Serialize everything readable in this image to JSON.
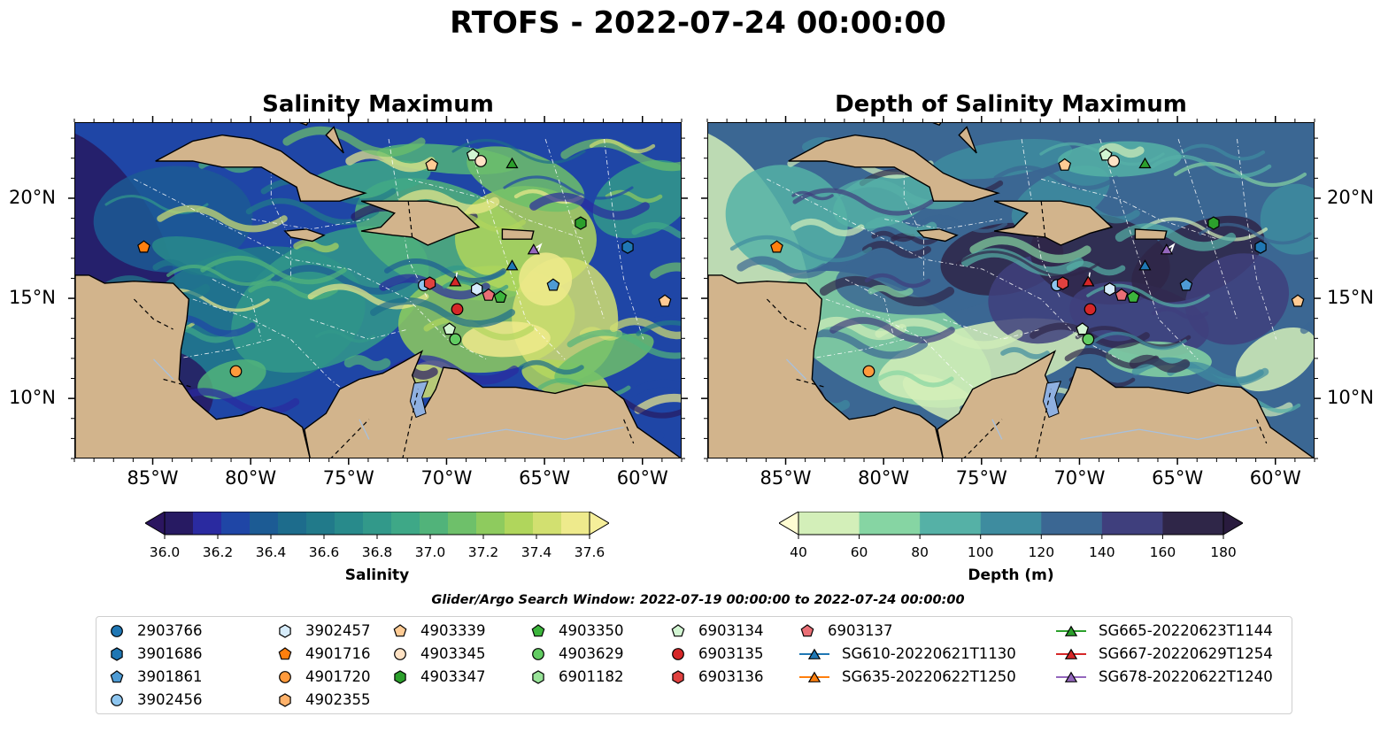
{
  "title": "RTOFS - 2022-07-24 00:00:00",
  "panels": [
    {
      "title": "Salinity Maximum"
    },
    {
      "title": "Depth of Salinity Maximum"
    }
  ],
  "axes": {
    "lon_labels": [
      "85°W",
      "80°W",
      "75°W",
      "70°W",
      "65°W",
      "60°W"
    ],
    "lat_labels": [
      "20°N",
      "15°N",
      "10°N"
    ]
  },
  "colorbars": [
    {
      "label": "Salinity",
      "ticks": [
        "36.0",
        "36.2",
        "36.4",
        "36.6",
        "36.8",
        "37.0",
        "37.2",
        "37.4",
        "37.6"
      ],
      "colors": [
        "#271a62",
        "#2a2aa0",
        "#1f46a6",
        "#1c5b94",
        "#1d6c8c",
        "#217a8a",
        "#288a8b",
        "#32998a",
        "#3ea887",
        "#51b37a",
        "#6ec06a",
        "#8ecb5e",
        "#b0d65c",
        "#d2e070",
        "#eeea8c"
      ],
      "extend_low": "#2b1560",
      "extend_high": "#f6ef9a"
    },
    {
      "label": "Depth (m)",
      "ticks": [
        "40",
        "60",
        "80",
        "100",
        "120",
        "140",
        "160",
        "180"
      ],
      "colors": [
        "#d3efb9",
        "#86d5a3",
        "#55b1a6",
        "#3e8c9f",
        "#3b6793",
        "#3f3f7d",
        "#2f2648"
      ],
      "extend_low": "#fefcd2",
      "extend_high": "#291b3e"
    }
  ],
  "search_window": "Glider/Argo Search Window: 2022-07-19 00:00:00 to 2022-07-24 00:00:00",
  "legend": [
    {
      "label": "2903766",
      "marker": "circle",
      "color": "#1f77b4"
    },
    {
      "label": "3901686",
      "marker": "hexagon",
      "color": "#1f77b4"
    },
    {
      "label": "3901861",
      "marker": "pentagon",
      "color": "#4e9bd4"
    },
    {
      "label": "3902456",
      "marker": "circle",
      "color": "#8ec6f0"
    },
    {
      "label": "3902457",
      "marker": "hexagon",
      "color": "#d6ecfb"
    },
    {
      "label": "4901716",
      "marker": "pentagon",
      "color": "#ff7f0e"
    },
    {
      "label": "4901720",
      "marker": "circle",
      "color": "#ff9a3c"
    },
    {
      "label": "4902355",
      "marker": "hexagon",
      "color": "#ffb26b"
    },
    {
      "label": "4903339",
      "marker": "pentagon",
      "color": "#ffcb94"
    },
    {
      "label": "4903345",
      "marker": "circle",
      "color": "#ffe2c4"
    },
    {
      "label": "4903347",
      "marker": "hexagon",
      "color": "#2ca02c"
    },
    {
      "label": "4903350",
      "marker": "pentagon",
      "color": "#3cb53c"
    },
    {
      "label": "4903629",
      "marker": "circle",
      "color": "#62cc62"
    },
    {
      "label": "6901182",
      "marker": "hexagon",
      "color": "#98e398"
    },
    {
      "label": "6903134",
      "marker": "pentagon",
      "color": "#d2f5d2"
    },
    {
      "label": "6903135",
      "marker": "circle",
      "color": "#d62728"
    },
    {
      "label": "6903136",
      "marker": "hexagon",
      "color": "#e0413f"
    },
    {
      "label": "6903137",
      "marker": "pentagon",
      "color": "#ea6f76"
    },
    {
      "label": "SG610-20220621T1130",
      "marker": "triangle-line",
      "color": "#1f77b4"
    },
    {
      "label": "SG635-20220622T1250",
      "marker": "triangle-line",
      "color": "#ff7f0e"
    },
    {
      "label": "SG665-20220623T1144",
      "marker": "triangle-line",
      "color": "#2ca02c"
    },
    {
      "label": "SG667-20220629T1254",
      "marker": "triangle-line",
      "color": "#d62728"
    },
    {
      "label": "SG678-20220622T1240",
      "marker": "triangle-line",
      "color": "#9467bd"
    }
  ],
  "map_markers": [
    {
      "lon": -85.5,
      "lat": 17.6,
      "marker": "pentagon",
      "color": "#ff7f0e"
    },
    {
      "lon": -80.8,
      "lat": 11.4,
      "marker": "circle",
      "color": "#ff9a3c"
    },
    {
      "lon": -70.8,
      "lat": 21.7,
      "marker": "pentagon",
      "color": "#ffcb94"
    },
    {
      "lon": -68.7,
      "lat": 22.2,
      "marker": "pentagon",
      "color": "#d2f5d2"
    },
    {
      "lon": -68.3,
      "lat": 21.9,
      "marker": "circle",
      "color": "#ffe2c4"
    },
    {
      "lon": -66.7,
      "lat": 21.8,
      "marker": "triangle",
      "color": "#2ca02c"
    },
    {
      "lon": -63.2,
      "lat": 18.8,
      "marker": "hexagon",
      "color": "#2ca02c"
    },
    {
      "lon": -60.8,
      "lat": 17.6,
      "marker": "hexagon",
      "color": "#1f77b4"
    },
    {
      "lon": -66.7,
      "lat": 16.7,
      "marker": "triangle",
      "color": "#1f77b4"
    },
    {
      "lon": -65.6,
      "lat": 17.5,
      "marker": "triangle",
      "color": "#9467bd"
    },
    {
      "lon": -64.6,
      "lat": 15.7,
      "marker": "pentagon",
      "color": "#4e9bd4"
    },
    {
      "lon": -58.9,
      "lat": 14.9,
      "marker": "pentagon",
      "color": "#ffcb94"
    },
    {
      "lon": -71.2,
      "lat": 15.7,
      "marker": "circle",
      "color": "#8ec6f0"
    },
    {
      "lon": -70.9,
      "lat": 15.8,
      "marker": "hexagon",
      "color": "#e0413f"
    },
    {
      "lon": -69.6,
      "lat": 15.9,
      "marker": "triangle",
      "color": "#d62728"
    },
    {
      "lon": -68.5,
      "lat": 15.5,
      "marker": "hexagon",
      "color": "#d6ecfb"
    },
    {
      "lon": -67.9,
      "lat": 15.2,
      "marker": "pentagon",
      "color": "#ea6f76"
    },
    {
      "lon": -67.3,
      "lat": 15.1,
      "marker": "pentagon",
      "color": "#3cb53c"
    },
    {
      "lon": -69.5,
      "lat": 14.5,
      "marker": "circle",
      "color": "#d62728"
    },
    {
      "lon": -69.9,
      "lat": 13.5,
      "marker": "pentagon",
      "color": "#d2f5d2"
    },
    {
      "lon": -69.6,
      "lat": 13.0,
      "marker": "circle",
      "color": "#62cc62"
    }
  ]
}
